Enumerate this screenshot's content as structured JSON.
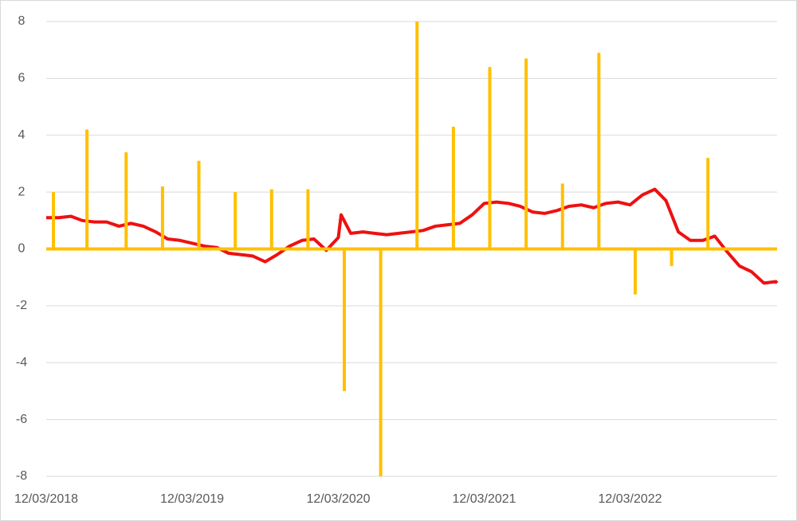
{
  "chart_data": {
    "type": "combo",
    "xlim": [
      "12/03/2018",
      "12/06/2023"
    ],
    "xticks": [
      "12/03/2018",
      "12/03/2019",
      "12/03/2020",
      "12/03/2021",
      "12/03/2022"
    ],
    "ylim": [
      -8,
      8
    ],
    "yticks": [
      -8,
      -6,
      -4,
      -2,
      0,
      2,
      4,
      6,
      8
    ],
    "grid": true,
    "series": [
      {
        "type": "line",
        "color": "#ee1111",
        "x": [
          "12/03/2018",
          "01/03/2019",
          "02/03/2019",
          "03/03/2019",
          "04/03/2019",
          "05/03/2019",
          "06/03/2019",
          "07/03/2019",
          "08/03/2019",
          "09/03/2019",
          "10/03/2019",
          "11/03/2019",
          "12/03/2019",
          "01/03/2020",
          "02/03/2020",
          "03/03/2020",
          "04/03/2020",
          "05/03/2020",
          "06/03/2020",
          "07/03/2020",
          "08/03/2020",
          "09/03/2020",
          "10/03/2020",
          "11/03/2020",
          "12/03/2020",
          "12/10/2020",
          "01/03/2021",
          "02/03/2021",
          "03/03/2021",
          "04/03/2021",
          "05/03/2021",
          "06/03/2021",
          "07/03/2021",
          "08/03/2021",
          "09/03/2021",
          "10/03/2021",
          "11/03/2021",
          "12/03/2021",
          "01/03/2022",
          "02/03/2022",
          "03/03/2022",
          "04/03/2022",
          "05/03/2022",
          "06/03/2022",
          "07/03/2022",
          "08/03/2022",
          "09/03/2022",
          "10/03/2022",
          "11/03/2022",
          "12/03/2022",
          "01/03/2023",
          "02/03/2023",
          "03/03/2023",
          "04/03/2023",
          "05/03/2023",
          "06/03/2023",
          "07/03/2023",
          "08/03/2023",
          "09/03/2023",
          "10/03/2023",
          "11/03/2023",
          "12/03/2023",
          "12/06/2023"
        ],
        "values": [
          1.1,
          1.1,
          1.15,
          1.0,
          0.95,
          0.95,
          0.8,
          0.9,
          0.8,
          0.6,
          0.35,
          0.3,
          0.2,
          0.1,
          0.05,
          -0.15,
          -0.2,
          -0.25,
          -0.45,
          -0.2,
          0.1,
          0.3,
          0.35,
          -0.05,
          0.4,
          1.2,
          0.55,
          0.6,
          0.55,
          0.5,
          0.55,
          0.6,
          0.65,
          0.8,
          0.85,
          0.9,
          1.2,
          1.6,
          1.65,
          1.6,
          1.5,
          1.3,
          1.25,
          1.35,
          1.5,
          1.55,
          1.45,
          1.6,
          1.65,
          1.55,
          1.9,
          2.1,
          1.7,
          0.6,
          0.3,
          0.3,
          0.45,
          -0.1,
          -0.6,
          -0.8,
          -1.2,
          -1.15,
          -1.2
        ]
      },
      {
        "type": "bar",
        "color": "#ffc000",
        "x": [
          "12/21/2018",
          "03/15/2019",
          "06/21/2019",
          "09/20/2019",
          "12/20/2019",
          "03/20/2020",
          "06/19/2020",
          "09/18/2020",
          "12/18/2020",
          "03/19/2021",
          "06/18/2021",
          "09/17/2021",
          "12/17/2021",
          "03/18/2022",
          "06/17/2022",
          "09/16/2022",
          "12/16/2022",
          "03/17/2023",
          "06/16/2023"
        ],
        "values": [
          2.0,
          4.2,
          3.4,
          2.2,
          3.1,
          2.0,
          2.1,
          2.1,
          -5.0,
          -8.0,
          8.0,
          4.3,
          6.4,
          6.7,
          2.3,
          6.9,
          -1.6,
          -0.6,
          3.2
        ]
      }
    ]
  }
}
